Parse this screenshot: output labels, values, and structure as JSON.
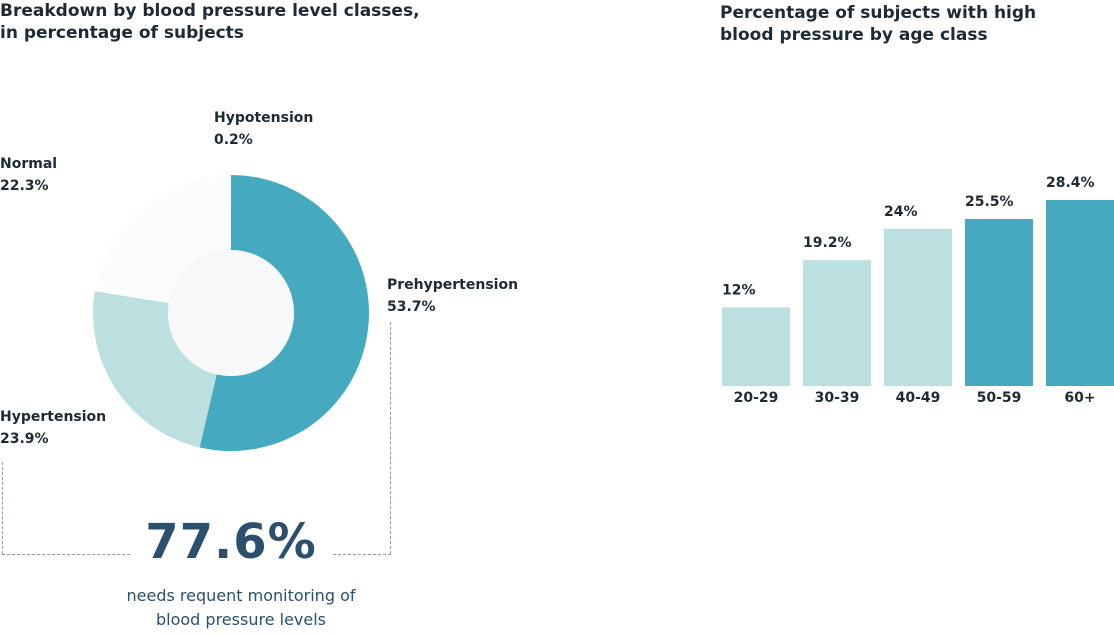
{
  "charts": {
    "donut": {
      "title_line1": "Breakdown by blood pressure level classes,",
      "title_line2": "in percentage of subjects",
      "segments": [
        {
          "name": "Hypotension",
          "value_label": "0.2%"
        },
        {
          "name": "Normal",
          "value_label": "22.3%"
        },
        {
          "name": "Hypertension",
          "value_label": "23.9%"
        },
        {
          "name": "Prehypertension",
          "value_label": "53.7%"
        }
      ],
      "highlight_value": "77.6%",
      "highlight_note_line1": "needs requent monitoring of",
      "highlight_note_line2": "blood pressure levels"
    },
    "bars": {
      "title_line1": "Percentage of subjects with high",
      "title_line2": "blood pressure by age class"
    }
  },
  "chart_data": [
    {
      "type": "pie",
      "title": "Breakdown by blood pressure level classes, in percentage of subjects",
      "categories": [
        "Prehypertension",
        "Hypertension",
        "Normal",
        "Hypotension"
      ],
      "values": [
        53.7,
        23.9,
        22.3,
        0.2
      ],
      "colors": [
        "#45aac0",
        "#bcdfe0",
        "#fbfcfc",
        "#f5f7f8"
      ],
      "annotation": "77.6%"
    },
    {
      "type": "bar",
      "title": "Percentage of subjects with high blood pressure by age class",
      "categories": [
        "20-29",
        "30-39",
        "40-49",
        "50-59",
        "60+"
      ],
      "values": [
        12,
        19.2,
        24,
        25.5,
        28.4
      ],
      "value_labels": [
        "12%",
        "19.2%",
        "24%",
        "25.5%",
        "28.4%"
      ],
      "colors": [
        "#bcdfe0",
        "#bcdfe0",
        "#bcdfe0",
        "#45aac0",
        "#45aac0"
      ],
      "ylim": [
        0,
        30
      ],
      "grid": false,
      "legend": "none"
    }
  ]
}
